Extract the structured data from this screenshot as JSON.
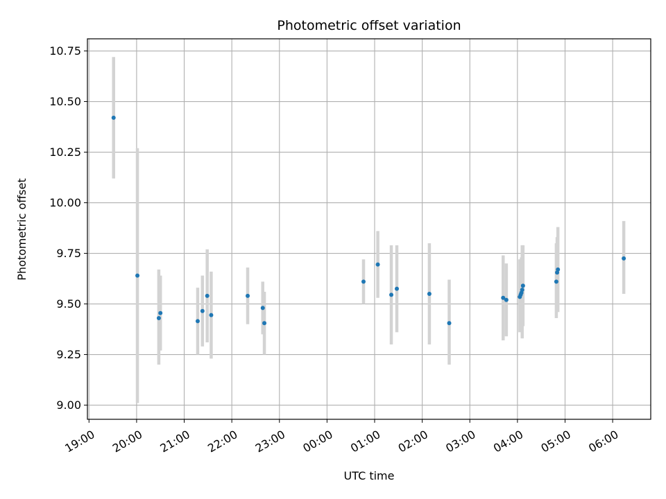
{
  "chart_data": {
    "type": "scatter",
    "title": "Photometric offset variation",
    "xlabel": "UTC time",
    "ylabel": "Photometric offset",
    "x_tick_labels": [
      "19:00",
      "20:00",
      "21:00",
      "22:00",
      "23:00",
      "00:00",
      "01:00",
      "02:00",
      "03:00",
      "04:00",
      "05:00",
      "06:00"
    ],
    "y_tick_labels": [
      "9.00",
      "9.25",
      "9.50",
      "9.75",
      "10.00",
      "10.25",
      "10.50",
      "10.75"
    ],
    "y_ticks": [
      9.0,
      9.25,
      9.5,
      9.75,
      10.0,
      10.25,
      10.5,
      10.75
    ],
    "xlim": [
      "18:58",
      "06:48"
    ],
    "ylim": [
      8.93,
      10.81
    ],
    "grid": true,
    "marker_color": "#1f77b4",
    "errorbar_color": "#d3d3d3",
    "points": [
      {
        "time": "19:31",
        "y": 10.42,
        "ylo": 10.12,
        "yhi": 10.72
      },
      {
        "time": "20:01",
        "y": 9.64,
        "ylo": 9.01,
        "yhi": 10.27
      },
      {
        "time": "20:28",
        "y": 9.43,
        "ylo": 9.2,
        "yhi": 9.67
      },
      {
        "time": "20:30",
        "y": 9.455,
        "ylo": 9.27,
        "yhi": 9.64
      },
      {
        "time": "21:17",
        "y": 9.415,
        "ylo": 9.25,
        "yhi": 9.58
      },
      {
        "time": "21:23",
        "y": 9.465,
        "ylo": 9.29,
        "yhi": 9.64
      },
      {
        "time": "21:29",
        "y": 9.54,
        "ylo": 9.31,
        "yhi": 9.77
      },
      {
        "time": "21:34",
        "y": 9.445,
        "ylo": 9.23,
        "yhi": 9.66
      },
      {
        "time": "22:20",
        "y": 9.54,
        "ylo": 9.4,
        "yhi": 9.68
      },
      {
        "time": "22:39",
        "y": 9.48,
        "ylo": 9.35,
        "yhi": 9.61
      },
      {
        "time": "22:41",
        "y": 9.405,
        "ylo": 9.25,
        "yhi": 9.56
      },
      {
        "time": "00:46",
        "y": 9.61,
        "ylo": 9.5,
        "yhi": 9.72
      },
      {
        "time": "01:04",
        "y": 9.695,
        "ylo": 9.53,
        "yhi": 9.86
      },
      {
        "time": "01:21",
        "y": 9.545,
        "ylo": 9.3,
        "yhi": 9.79
      },
      {
        "time": "01:28",
        "y": 9.575,
        "ylo": 9.36,
        "yhi": 9.79
      },
      {
        "time": "02:09",
        "y": 9.55,
        "ylo": 9.3,
        "yhi": 9.8
      },
      {
        "time": "02:34",
        "y": 9.405,
        "ylo": 9.2,
        "yhi": 9.62
      },
      {
        "time": "03:42",
        "y": 9.53,
        "ylo": 9.32,
        "yhi": 9.74
      },
      {
        "time": "03:46",
        "y": 9.52,
        "ylo": 9.34,
        "yhi": 9.7
      },
      {
        "time": "04:03",
        "y": 9.535,
        "ylo": 9.36,
        "yhi": 9.72
      },
      {
        "time": "04:04",
        "y": 9.545,
        "ylo": 9.37,
        "yhi": 9.72
      },
      {
        "time": "04:05",
        "y": 9.555,
        "ylo": 9.38,
        "yhi": 9.73
      },
      {
        "time": "04:06",
        "y": 9.57,
        "ylo": 9.33,
        "yhi": 9.79
      },
      {
        "time": "04:07",
        "y": 9.59,
        "ylo": 9.39,
        "yhi": 9.79
      },
      {
        "time": "04:49",
        "y": 9.61,
        "ylo": 9.43,
        "yhi": 9.8
      },
      {
        "time": "04:50",
        "y": 9.655,
        "ylo": 9.47,
        "yhi": 9.83
      },
      {
        "time": "04:51",
        "y": 9.67,
        "ylo": 9.46,
        "yhi": 9.88
      },
      {
        "time": "06:14",
        "y": 9.725,
        "ylo": 9.55,
        "yhi": 9.91
      }
    ]
  }
}
